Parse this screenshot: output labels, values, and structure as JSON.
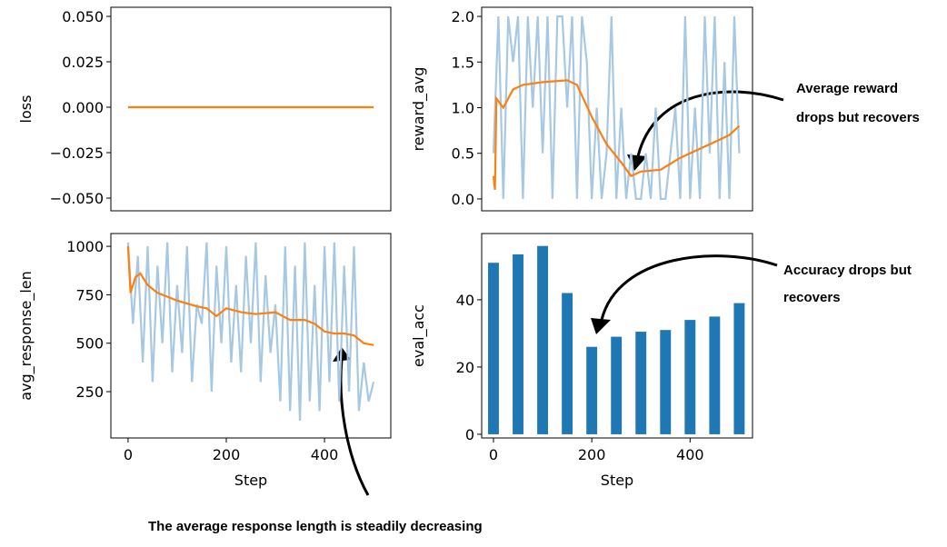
{
  "chart_data": [
    {
      "type": "line",
      "ylabel": "loss",
      "xlim": [
        -35,
        535
      ],
      "ylim": [
        -0.057,
        0.055
      ],
      "yticks": [
        {
          "value": 0.05,
          "label": "0.050"
        },
        {
          "value": 0.025,
          "label": "0.025"
        },
        {
          "value": 0,
          "label": "0.000"
        },
        {
          "value": -0.025,
          "label": "−0.025"
        },
        {
          "value": -0.05,
          "label": "−0.050"
        }
      ],
      "series": [
        {
          "color": "#ff7f0e",
          "x": [
            0,
            500
          ],
          "values": [
            0,
            0
          ]
        }
      ]
    },
    {
      "type": "line",
      "ylabel": "reward_avg",
      "xlim": [
        -24,
        527
      ],
      "ylim": [
        -0.13,
        2.1
      ],
      "yticks": [
        {
          "value": 0,
          "label": "0.0"
        },
        {
          "value": 0.5,
          "label": "0.5"
        },
        {
          "value": 1,
          "label": "1.0"
        },
        {
          "value": 1.5,
          "label": "1.5"
        },
        {
          "value": 2,
          "label": "2.0"
        }
      ],
      "series": [
        {
          "color": "#a6c8e3",
          "x": [
            0,
            10,
            20,
            30,
            40,
            50,
            60,
            70,
            80,
            90,
            100,
            110,
            120,
            130,
            140,
            150,
            160,
            170,
            180,
            190,
            200,
            210,
            220,
            230,
            240,
            250,
            260,
            270,
            280,
            290,
            300,
            310,
            320,
            330,
            340,
            350,
            360,
            370,
            380,
            390,
            400,
            410,
            420,
            430,
            440,
            450,
            460,
            470,
            480,
            490,
            500
          ],
          "values": [
            0.5,
            2,
            0,
            2,
            1.5,
            2,
            0,
            2,
            1,
            2,
            0.5,
            2,
            0,
            2,
            2,
            1,
            2,
            0,
            2,
            1.5,
            0,
            1,
            0,
            0.5,
            2,
            0,
            1,
            0,
            0.5,
            0,
            0,
            0.5,
            0,
            1,
            0,
            0,
            0.5,
            1,
            0,
            2,
            0,
            1,
            0,
            2,
            0.5,
            2,
            0,
            1.5,
            0,
            2,
            0.5
          ]
        },
        {
          "color": "#ff7f0e",
          "x": [
            0,
            3,
            6,
            20,
            40,
            60,
            100,
            150,
            170,
            200,
            230,
            260,
            280,
            300,
            340,
            380,
            420,
            460,
            480,
            500
          ],
          "values": [
            0.25,
            0.1,
            1.1,
            1.0,
            1.2,
            1.25,
            1.28,
            1.3,
            1.25,
            0.9,
            0.6,
            0.4,
            0.25,
            0.3,
            0.32,
            0.45,
            0.55,
            0.65,
            0.7,
            0.8
          ]
        }
      ]
    },
    {
      "type": "line",
      "ylabel": "avg_response_len",
      "xlabel": "Step",
      "xlim": [
        -35,
        535
      ],
      "ylim": [
        11,
        1066
      ],
      "xticks": [
        0,
        200,
        400
      ],
      "yticks": [
        250,
        500,
        750,
        1000
      ],
      "series": [
        {
          "color": "#a6c8e3",
          "x": [
            0,
            10,
            20,
            30,
            40,
            50,
            60,
            70,
            80,
            90,
            100,
            110,
            120,
            130,
            140,
            150,
            160,
            170,
            180,
            190,
            200,
            210,
            220,
            230,
            240,
            250,
            260,
            270,
            280,
            290,
            300,
            310,
            320,
            330,
            340,
            350,
            360,
            370,
            380,
            390,
            400,
            410,
            420,
            430,
            440,
            450,
            460,
            470,
            480,
            490,
            500
          ],
          "values": [
            1020,
            600,
            950,
            400,
            1000,
            300,
            900,
            500,
            1020,
            350,
            800,
            450,
            1000,
            300,
            700,
            600,
            1020,
            250,
            900,
            500,
            1000,
            400,
            800,
            350,
            950,
            500,
            1020,
            300,
            850,
            450,
            700,
            200,
            1000,
            150,
            900,
            100,
            1020,
            200,
            800,
            150,
            1000,
            300,
            1020,
            200,
            900,
            250,
            1000,
            150,
            400,
            200,
            300
          ]
        },
        {
          "color": "#ff7f0e",
          "x": [
            0,
            5,
            15,
            25,
            40,
            60,
            80,
            100,
            140,
            160,
            180,
            200,
            230,
            260,
            300,
            330,
            360,
            380,
            400,
            420,
            440,
            460,
            480,
            500
          ],
          "values": [
            1000,
            760,
            840,
            860,
            800,
            760,
            740,
            720,
            690,
            680,
            640,
            680,
            660,
            650,
            660,
            620,
            620,
            600,
            560,
            550,
            550,
            540,
            500,
            490
          ]
        }
      ]
    },
    {
      "type": "bar",
      "ylabel": "eval_acc",
      "xlabel": "Step",
      "xlim": [
        -24,
        527
      ],
      "ylim": [
        -1.1,
        59.7
      ],
      "xticks": [
        0,
        200,
        400
      ],
      "yticks": [
        0,
        20,
        40
      ],
      "color": "#1f77b4",
      "x": [
        0,
        50,
        100,
        150,
        200,
        250,
        300,
        350,
        400,
        450,
        500
      ],
      "values": [
        51,
        53.5,
        56,
        42,
        26,
        29,
        30.5,
        31,
        34,
        35,
        39
      ]
    }
  ],
  "annotations": [
    [
      "Average reward",
      "drops but recovers"
    ],
    [
      "Accuracy drops but",
      "recovers"
    ],
    [
      "The average response length is steadily decreasing"
    ]
  ]
}
